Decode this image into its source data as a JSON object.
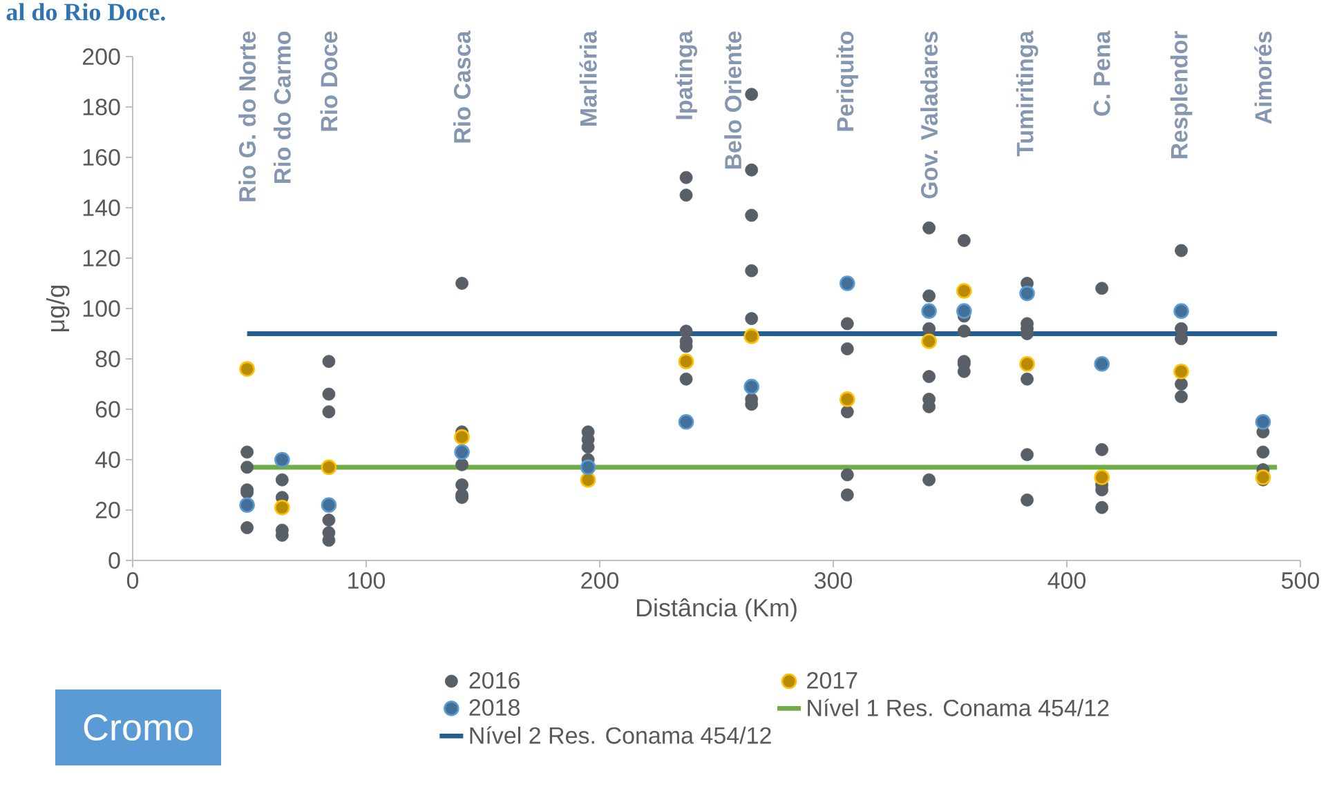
{
  "chart_data": {
    "type": "scatter",
    "title": "al do Rio Doce.",
    "xlabel": "Distância (Km)",
    "ylabel": "μg/g",
    "xlim": [
      0,
      500
    ],
    "xticks": [
      0,
      100,
      200,
      300,
      400,
      500
    ],
    "ylim": [
      0,
      200
    ],
    "yticks": [
      0,
      20,
      40,
      60,
      80,
      100,
      120,
      140,
      160,
      180,
      200
    ],
    "legend": "bottom",
    "series": [
      {
        "name": "2016",
        "color": "#595f66",
        "x": [
          49,
          49,
          49,
          49,
          49,
          64,
          64,
          64,
          64,
          84,
          84,
          84,
          84,
          84,
          84,
          141,
          141,
          141,
          141,
          141,
          141,
          195,
          195,
          195,
          195,
          237,
          237,
          237,
          237,
          237,
          237,
          265,
          265,
          265,
          265,
          265,
          265,
          265,
          306,
          306,
          306,
          306,
          306,
          341,
          341,
          341,
          341,
          341,
          341,
          341,
          356,
          356,
          356,
          356,
          356,
          356,
          383,
          383,
          383,
          383,
          383,
          383,
          383,
          415,
          415,
          415,
          415,
          415,
          449,
          449,
          449,
          449,
          449,
          484,
          484,
          484,
          484
        ],
        "values": [
          43,
          37,
          28,
          27,
          13,
          32,
          25,
          12,
          10,
          79,
          66,
          59,
          16,
          11,
          8,
          110,
          51,
          38,
          30,
          26,
          25,
          51,
          48,
          45,
          40,
          152,
          145,
          91,
          87,
          85,
          72,
          185,
          155,
          137,
          115,
          96,
          64,
          62,
          94,
          84,
          59,
          34,
          26,
          132,
          105,
          92,
          73,
          64,
          61,
          32,
          127,
          97,
          91,
          79,
          78,
          75,
          110,
          94,
          92,
          90,
          72,
          42,
          24,
          108,
          44,
          30,
          28,
          21,
          123,
          92,
          88,
          70,
          65,
          51,
          43,
          36,
          32
        ]
      },
      {
        "name": "2017",
        "color": "#ffc000",
        "x": [
          49,
          64,
          84,
          141,
          195,
          237,
          265,
          306,
          341,
          356,
          383,
          415,
          449,
          484
        ],
        "values": [
          76,
          21,
          37,
          49,
          32,
          79,
          89,
          64,
          87,
          107,
          78,
          33,
          75,
          33
        ]
      },
      {
        "name": "2018",
        "color": "#5b9bd5",
        "x": [
          49,
          64,
          84,
          141,
          195,
          237,
          265,
          306,
          341,
          356,
          383,
          415,
          449,
          484
        ],
        "values": [
          22,
          40,
          22,
          43,
          37,
          55,
          69,
          110,
          99,
          99,
          106,
          78,
          99,
          55
        ]
      },
      {
        "name": "Nível 1 Res. Conama 454/12",
        "type": "line",
        "color": "#70ad47",
        "x": [
          49,
          490
        ],
        "values": [
          37,
          37
        ]
      },
      {
        "name": "Nível 2 Res. Conama 454/12",
        "type": "line",
        "color": "#255e91",
        "x": [
          49,
          490
        ],
        "values": [
          90,
          90
        ]
      }
    ],
    "annotations": [
      "Cromo",
      "Rio G. do Norte",
      "Rio do Carmo",
      "Rio Doce",
      "Rio Casca",
      "Marliéria",
      "Ipatinga",
      "Belo Oriente",
      "Periquito",
      "Gov. Valadares",
      "Tumiritinga",
      "C. Pena",
      "Resplendor",
      "Aimorés"
    ]
  }
}
